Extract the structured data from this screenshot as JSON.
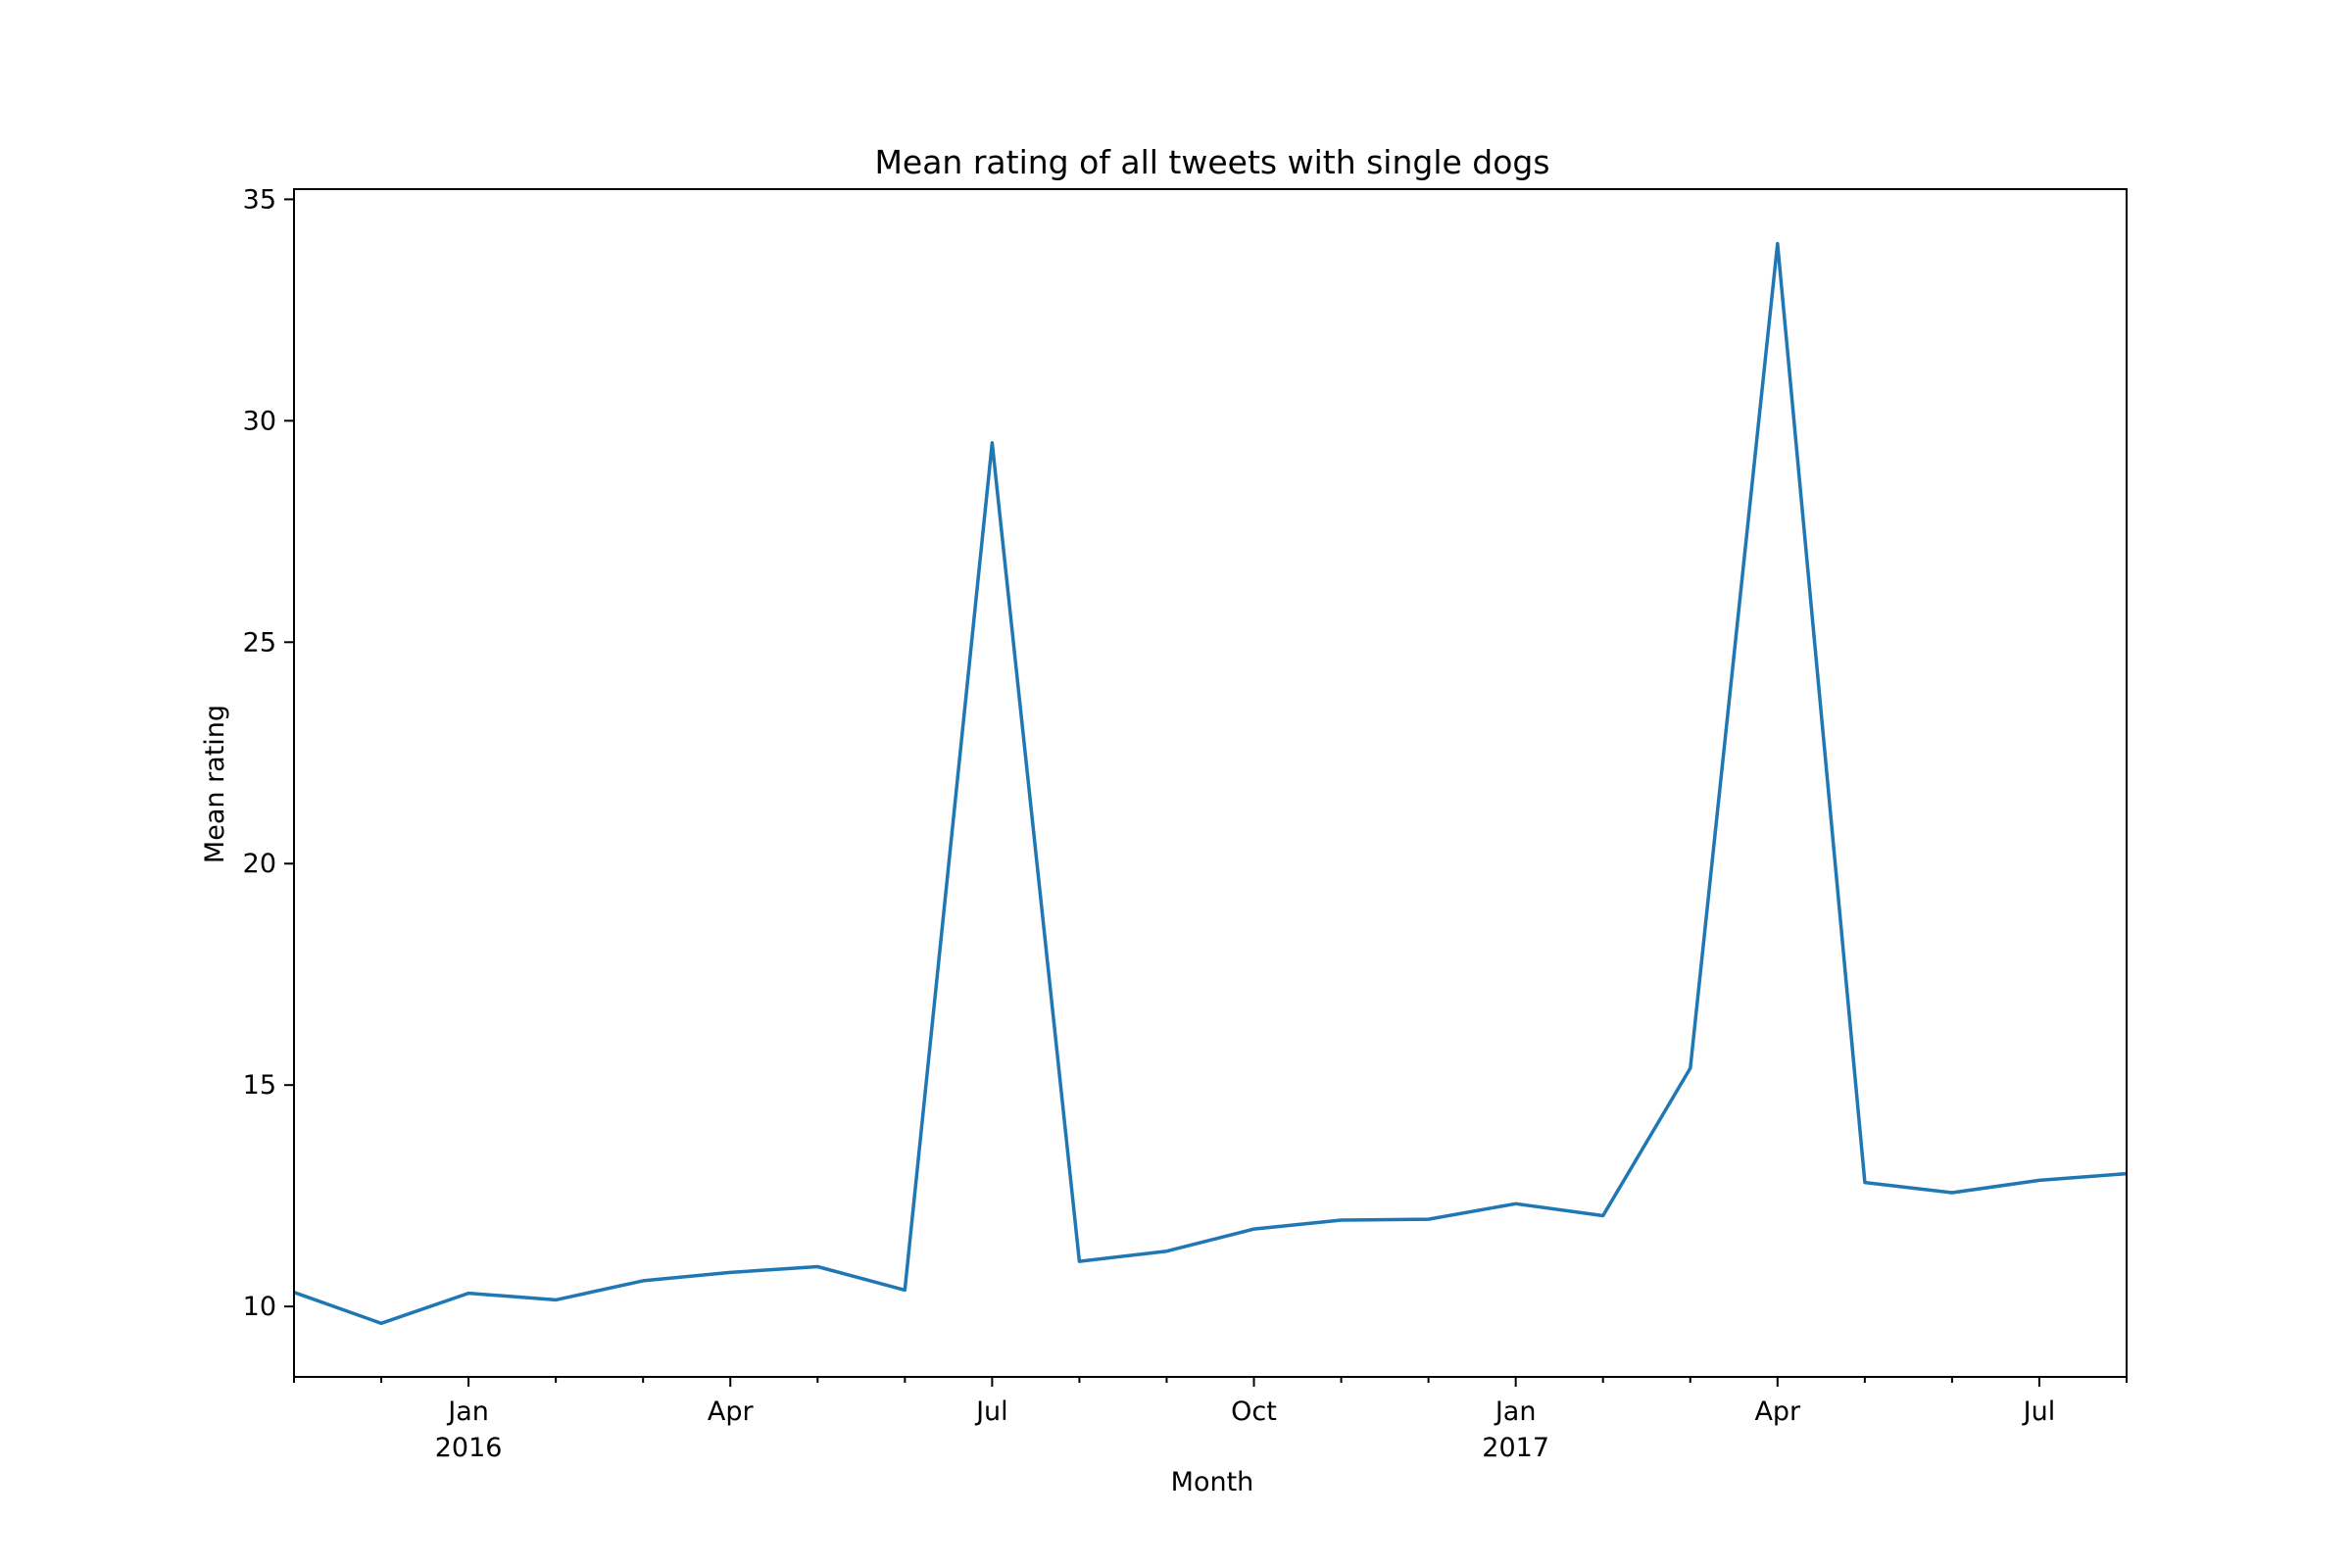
{
  "chart_data": {
    "type": "line",
    "title": "Mean rating of all tweets with single dogs",
    "xlabel": "Month",
    "ylabel": "Mean rating",
    "x": [
      "2015-11",
      "2015-12",
      "2016-01",
      "2016-02",
      "2016-03",
      "2016-04",
      "2016-05",
      "2016-06",
      "2016-07",
      "2016-08",
      "2016-09",
      "2016-10",
      "2016-11",
      "2016-12",
      "2017-01",
      "2017-02",
      "2017-03",
      "2017-04",
      "2017-05",
      "2017-06",
      "2017-07",
      "2017-08"
    ],
    "series": [
      {
        "values": [
          10.32,
          9.62,
          10.3,
          10.15,
          10.58,
          10.77,
          10.9,
          10.37,
          29.5,
          11.02,
          11.25,
          11.75,
          11.95,
          11.97,
          12.32,
          12.05,
          15.38,
          34.0,
          12.8,
          12.57,
          12.85,
          13.0
        ],
        "color": "#1f77b4"
      }
    ],
    "ylim": [
      8.41,
      35.23
    ],
    "yticks": [
      "10",
      "15",
      "20",
      "25",
      "30",
      "35"
    ],
    "xtick_labels": [
      {
        "month": "2016-01",
        "label": "Jan",
        "sublabel": "2016"
      },
      {
        "month": "2016-04",
        "label": "Apr",
        "sublabel": ""
      },
      {
        "month": "2016-07",
        "label": "Jul",
        "sublabel": ""
      },
      {
        "month": "2016-10",
        "label": "Oct",
        "sublabel": ""
      },
      {
        "month": "2017-01",
        "label": "Jan",
        "sublabel": "2017"
      },
      {
        "month": "2017-04",
        "label": "Apr",
        "sublabel": ""
      },
      {
        "month": "2017-07",
        "label": "Jul",
        "sublabel": ""
      }
    ],
    "grid": false,
    "legend": "none"
  }
}
